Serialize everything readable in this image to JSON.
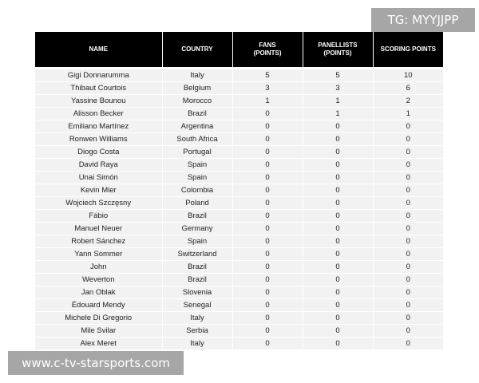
{
  "watermarks": {
    "top": "TG: MYYJJPP",
    "bottom": "www.c-tv-starsports.com"
  },
  "table": {
    "headers": [
      "NAME",
      "COUNTRY",
      "FANS\n(POINTS)",
      "PANELLISTS\n(POINTS)",
      "SCORING POINTS"
    ],
    "rows": [
      [
        "Gigi Donnarumma",
        "Italy",
        "5",
        "5",
        "10"
      ],
      [
        "Thibaut Courtois",
        "Belgium",
        "3",
        "3",
        "6"
      ],
      [
        "Yassine Bounou",
        "Morocco",
        "1",
        "1",
        "2"
      ],
      [
        "Alisson Becker",
        "Brazil",
        "0",
        "1",
        "1"
      ],
      [
        "Emiliano Martínez",
        "Argentina",
        "0",
        "0",
        "0"
      ],
      [
        "Ronwen Williams",
        "South Africa",
        "0",
        "0",
        "0"
      ],
      [
        "Diogo Costa",
        "Portugal",
        "0",
        "0",
        "0"
      ],
      [
        "David Raya",
        "Spain",
        "0",
        "0",
        "0"
      ],
      [
        "Unai Simón",
        "Spain",
        "0",
        "0",
        "0"
      ],
      [
        "Kevin Mier",
        "Colombia",
        "0",
        "0",
        "0"
      ],
      [
        "Wojciech Szczęsny",
        "Poland",
        "0",
        "0",
        "0"
      ],
      [
        "Fábio",
        "Brazil",
        "0",
        "0",
        "0"
      ],
      [
        "Manuel Neuer",
        "Germany",
        "0",
        "0",
        "0"
      ],
      [
        "Robert Sánchez",
        "Spain",
        "0",
        "0",
        "0"
      ],
      [
        "Yann Sommer",
        "Switzerland",
        "0",
        "0",
        "0"
      ],
      [
        "John",
        "Brazil",
        "0",
        "0",
        "0"
      ],
      [
        "Weverton",
        "Brazil",
        "0",
        "0",
        "0"
      ],
      [
        "Jan Oblak",
        "Slovenia",
        "0",
        "0",
        "0"
      ],
      [
        "Édouard Mendy",
        "Senegal",
        "0",
        "0",
        "0"
      ],
      [
        "Michele Di Gregorio",
        "Italy",
        "0",
        "0",
        "0"
      ],
      [
        "Mile Svilar",
        "Serbia",
        "0",
        "0",
        "0"
      ],
      [
        "Alex Meret",
        "Italy",
        "0",
        "0",
        "0"
      ]
    ]
  }
}
